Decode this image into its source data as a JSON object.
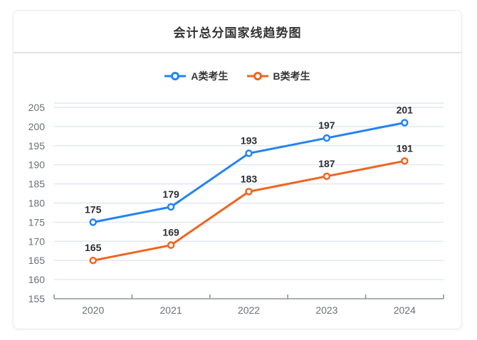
{
  "header": {
    "title": "会计总分国家线趋势图"
  },
  "chart_data": {
    "type": "line",
    "title": "会计总分国家线趋势图",
    "categories": [
      "2020",
      "2021",
      "2022",
      "2023",
      "2024"
    ],
    "series": [
      {
        "name": "A类考生",
        "color": "#2383f2",
        "values": [
          175,
          179,
          193,
          197,
          201
        ]
      },
      {
        "name": "B类考生",
        "color": "#f0641f",
        "values": [
          165,
          169,
          183,
          187,
          191
        ]
      }
    ],
    "yticks": [
      155,
      160,
      165,
      170,
      175,
      180,
      185,
      190,
      195,
      200,
      205
    ],
    "ylim": [
      155,
      206
    ],
    "grid": true,
    "legend_position": "top",
    "xlabel": "",
    "ylabel": "",
    "marker": "hollow-circle",
    "data_labels_shown": true
  },
  "colors": {
    "grid_line": "#e1e6f0",
    "axis_line": "#8e939e",
    "tick_label": "#6a7078",
    "data_label": "#2b2e33",
    "legend_text": "#333333",
    "card_border": "#ebebeb",
    "divider": "#e2e2e2",
    "title_text": "#333333",
    "background": "#ffffff"
  }
}
